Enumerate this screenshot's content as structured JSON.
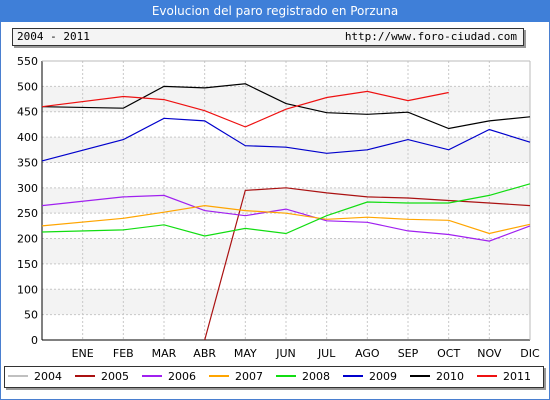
{
  "title": "Evolucion del paro registrado en Porzuna",
  "period": "2004 - 2011",
  "website": "http://www.foro-ciudad.com",
  "chart_data": {
    "type": "line",
    "categories": [
      "ENE",
      "FEB",
      "MAR",
      "ABR",
      "MAY",
      "JUN",
      "JUL",
      "AGO",
      "SEP",
      "OCT",
      "NOV",
      "DIC"
    ],
    "ylim": [
      0,
      550
    ],
    "yticks": [
      "0",
      "50",
      "100",
      "150",
      "200",
      "250",
      "300",
      "350",
      "400",
      "450",
      "500",
      "550"
    ],
    "grid": true,
    "legend_position": "bottom",
    "series": [
      {
        "name": "2004",
        "color": "#c0c0c0",
        "values": [
          null,
          null,
          null,
          null,
          null,
          null,
          null,
          null,
          null,
          null,
          null,
          null
        ]
      },
      {
        "name": "2005",
        "color": "#aa1111",
        "values": [
          null,
          null,
          null,
          0,
          295,
          300,
          290,
          282,
          280,
          275,
          270,
          265
        ]
      },
      {
        "name": "2006",
        "color": "#a020f0",
        "values": [
          265,
          282,
          285,
          255,
          245,
          258,
          235,
          232,
          215,
          208,
          195,
          225
        ]
      },
      {
        "name": "2007",
        "color": "#ffa500",
        "values": [
          225,
          240,
          252,
          265,
          255,
          250,
          238,
          242,
          238,
          236,
          210,
          228
        ]
      },
      {
        "name": "2008",
        "color": "#11dd11",
        "values": [
          213,
          217,
          227,
          205,
          220,
          210,
          245,
          272,
          270,
          270,
          285,
          308
        ]
      },
      {
        "name": "2009",
        "color": "#0000cc",
        "values": [
          353,
          395,
          437,
          432,
          383,
          380,
          368,
          375,
          395,
          375,
          415,
          390
        ]
      },
      {
        "name": "2010",
        "color": "#000000",
        "values": [
          460,
          457,
          500,
          497,
          505,
          466,
          448,
          445,
          449,
          417,
          432,
          440
        ]
      },
      {
        "name": "2011",
        "color": "#ee1111",
        "values": [
          460,
          480,
          474,
          452,
          420,
          455,
          478,
          490,
          472,
          488,
          null,
          null
        ]
      }
    ]
  }
}
